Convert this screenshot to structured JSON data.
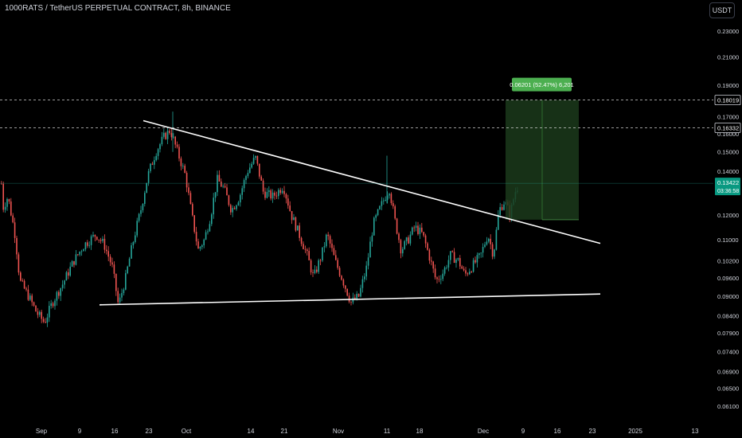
{
  "header": {
    "symbol_title": "1000RATS / TetherUS PERPETUAL CONTRACT, 8h, BINANCE",
    "unit_label": "USDT"
  },
  "chart_data": {
    "type": "candlestick",
    "title": "1000RATS / TetherUS PERPETUAL CONTRACT, 8h, BINANCE",
    "price_ticks": [
      "0.23000",
      "0.21000",
      "0.19000",
      "0.17000",
      "0.16000",
      "0.15000",
      "0.14000",
      "0.12000",
      "0.11000",
      "0.10200",
      "0.09600",
      "0.09000",
      "0.08400",
      "0.07900",
      "0.07400",
      "0.06900",
      "0.06500",
      "0.06100"
    ],
    "date_ticks": [
      "Sep",
      "9",
      "16",
      "23",
      "Oct",
      "14",
      "21",
      "Nov",
      "11",
      "18",
      "Dec",
      "9",
      "16",
      "23",
      "2025",
      "13"
    ],
    "current_price": {
      "value": "0.13422",
      "countdown": "03:36:58"
    },
    "target_levels": [
      "0.18019",
      "0.16332"
    ],
    "position": {
      "label": "0.06201 (52.47%) 6,201"
    },
    "colors": {
      "up": "#26a69a",
      "down": "#ef5350",
      "position_fill": "#1b3a1b",
      "label_green": "#4caf50",
      "trendline": "#ffffff"
    },
    "grid": false,
    "legend": "none"
  }
}
